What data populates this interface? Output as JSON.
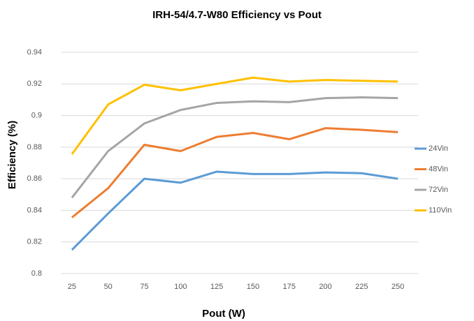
{
  "chart_data": {
    "type": "line",
    "title": "IRH-54/4.7-W80 Efficiency vs Pout",
    "x_label": "Pout (W)",
    "y_label": "Efficiency (%)",
    "categories": [
      "25",
      "50",
      "75",
      "100",
      "125",
      "150",
      "175",
      "200",
      "225",
      "250"
    ],
    "series": [
      {
        "name": "24Vin",
        "color": "#5b9bd5",
        "values": [
          0.815,
          0.838,
          0.86,
          0.8575,
          0.8645,
          0.863,
          0.863,
          0.864,
          0.8635,
          0.86
        ]
      },
      {
        "name": "48Vin",
        "color": "#ed7d31",
        "values": [
          0.8355,
          0.854,
          0.8815,
          0.8775,
          0.8865,
          0.889,
          0.885,
          0.892,
          0.891,
          0.8895
        ]
      },
      {
        "name": "72Vin",
        "color": "#a5a5a5",
        "values": [
          0.848,
          0.8775,
          0.895,
          0.9035,
          0.908,
          0.909,
          0.9085,
          0.911,
          0.9115,
          0.911
        ]
      },
      {
        "name": "110Vin",
        "color": "#ffc000",
        "values": [
          0.8755,
          0.907,
          0.9195,
          0.916,
          0.92,
          0.924,
          0.9215,
          0.9225,
          0.922,
          0.9215
        ]
      }
    ],
    "ylim": [
      0.8,
      0.94
    ],
    "yticks": [
      0.8,
      0.82,
      0.84,
      0.86,
      0.88,
      0.9,
      0.92,
      0.94
    ],
    "grid": true,
    "legend": "right"
  }
}
